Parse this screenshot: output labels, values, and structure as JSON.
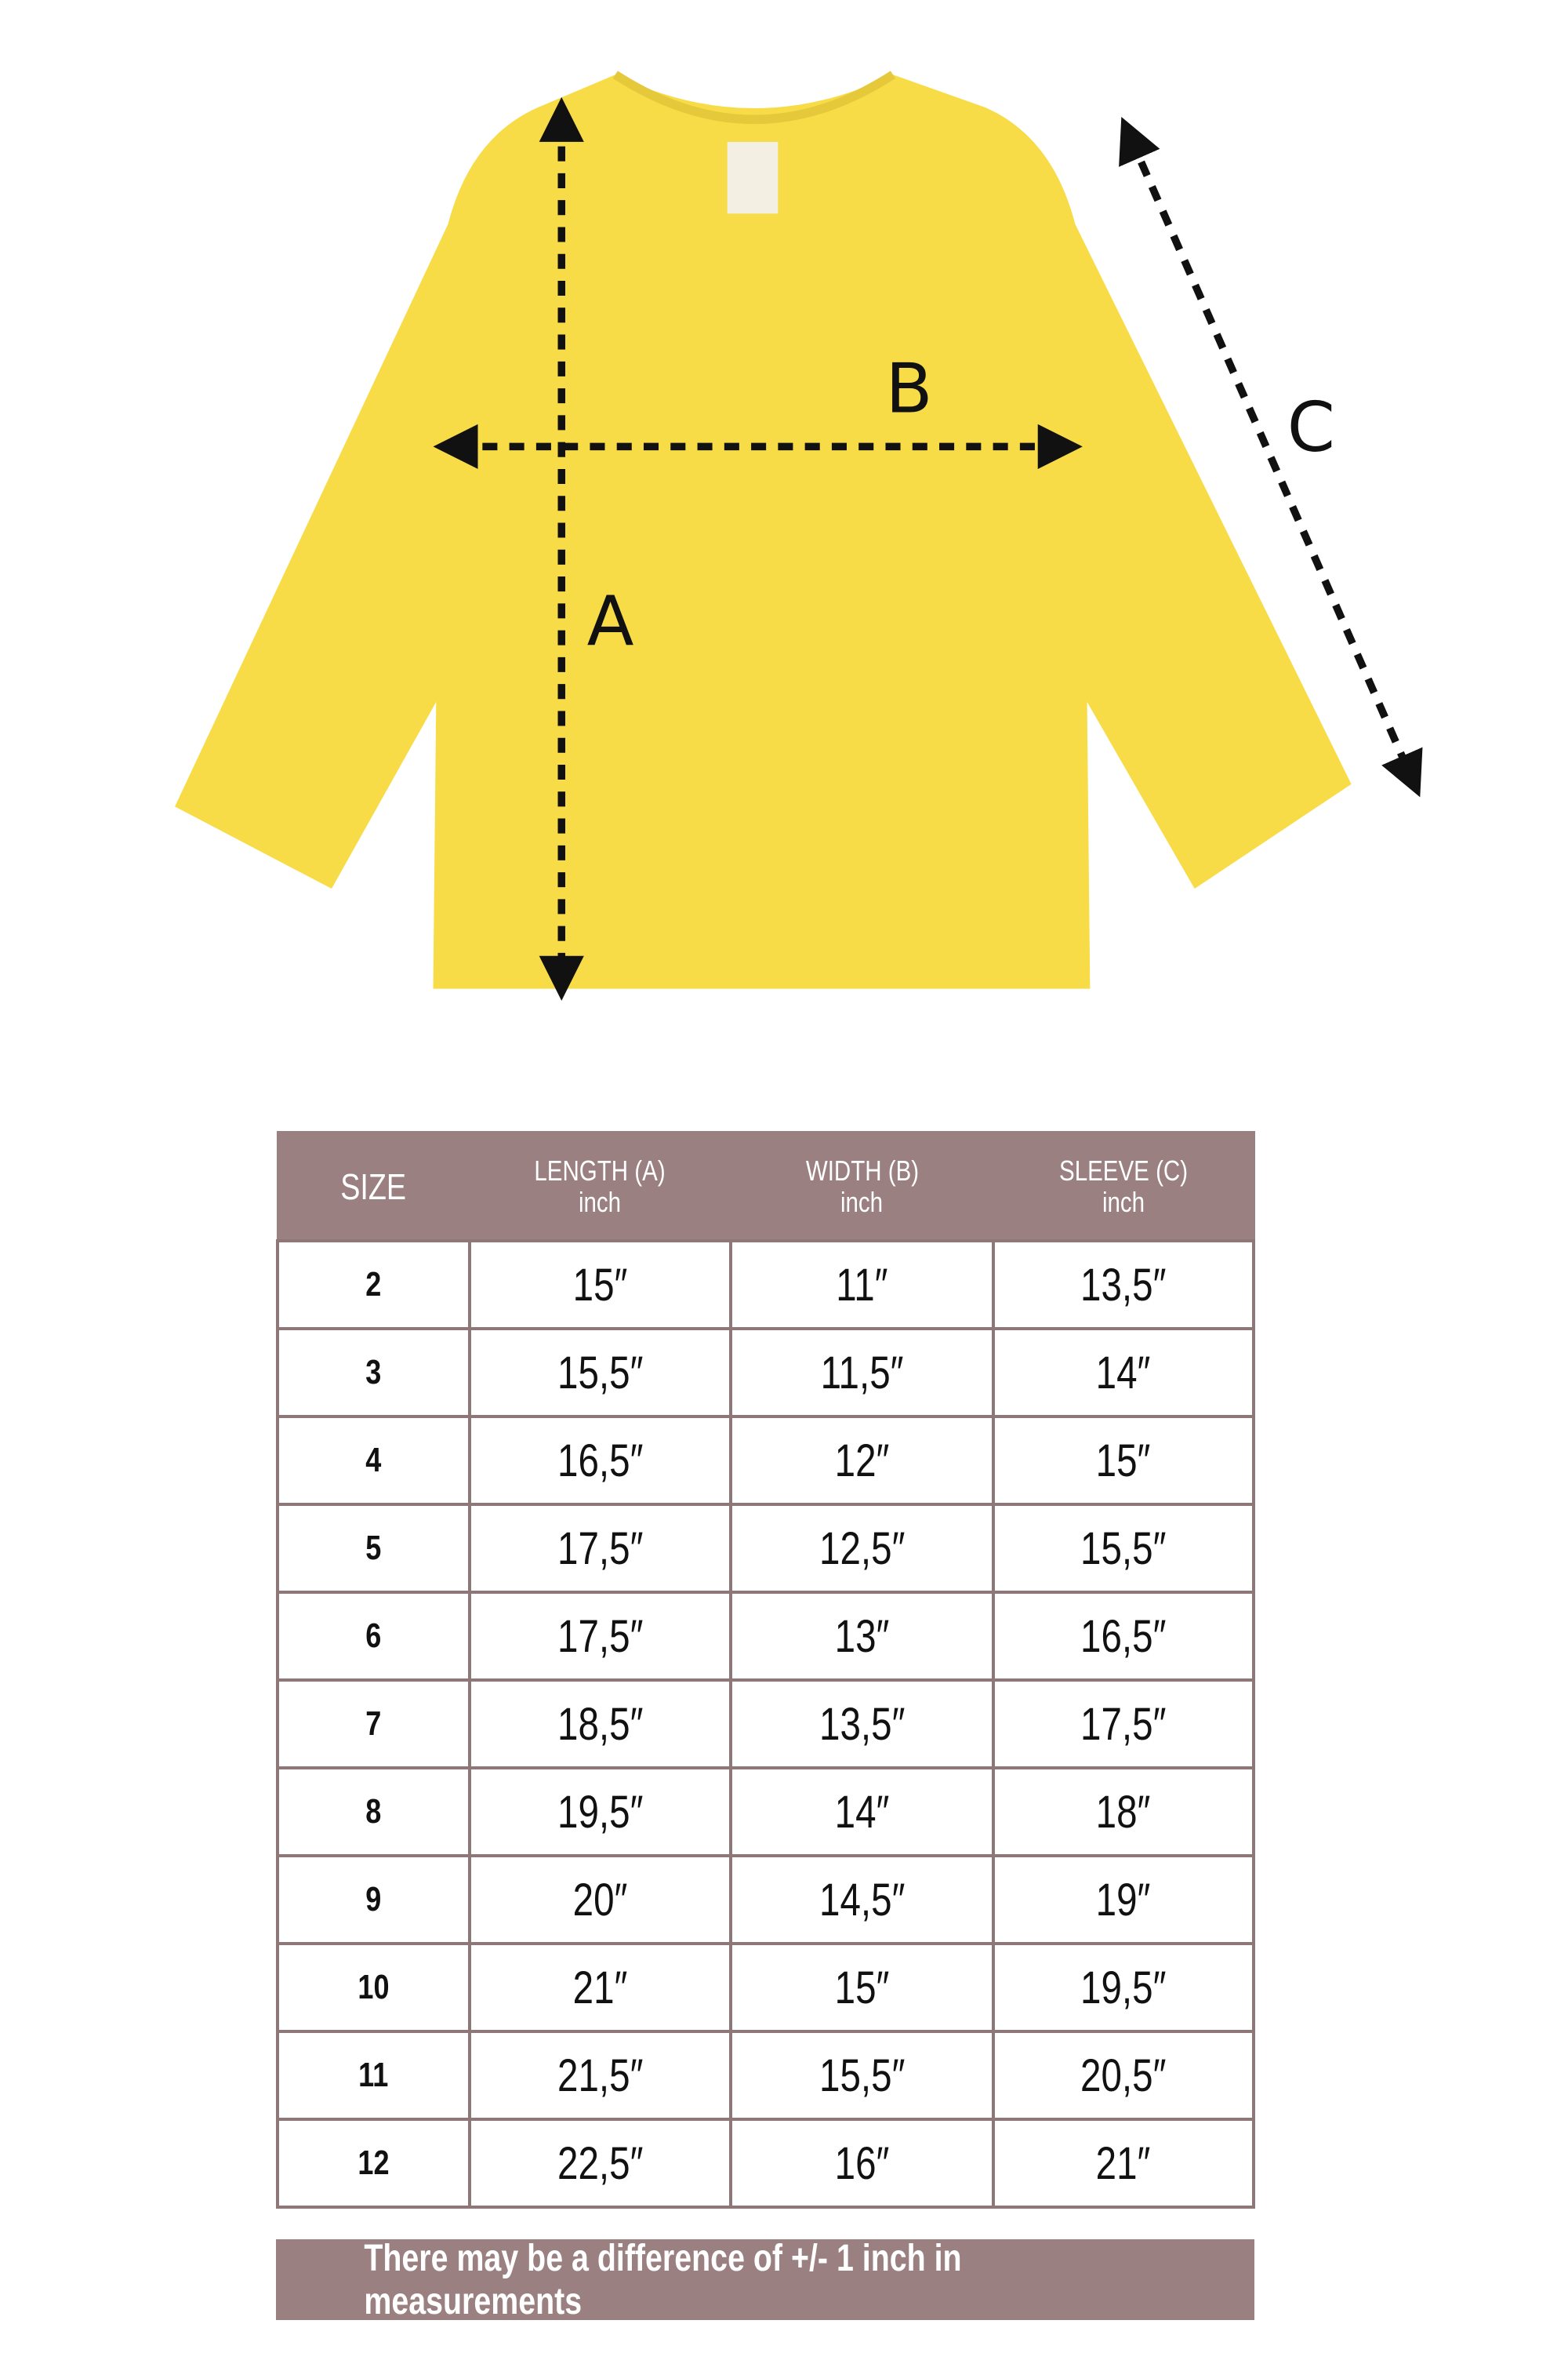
{
  "diagram": {
    "labels": {
      "a": "A",
      "b": "B",
      "c": "C"
    },
    "colors": {
      "shirt": "#f7dc48",
      "arrows": "#111111"
    }
  },
  "table": {
    "headers": [
      {
        "title": "SIZE",
        "unit": ""
      },
      {
        "title": "LENGTH (A)",
        "unit": "inch"
      },
      {
        "title": "WIDTH (B)",
        "unit": "inch"
      },
      {
        "title": "SLEEVE (C)",
        "unit": "inch"
      }
    ],
    "rows": [
      [
        "2",
        "15″",
        "11″",
        "13,5″"
      ],
      [
        "3",
        "15,5″",
        "11,5″",
        "14″"
      ],
      [
        "4",
        "16,5″",
        "12″",
        "15″"
      ],
      [
        "5",
        "17,5″",
        "12,5″",
        "15,5″"
      ],
      [
        "6",
        "17,5″",
        "13″",
        "16,5″"
      ],
      [
        "7",
        "18,5″",
        "13,5″",
        "17,5″"
      ],
      [
        "8",
        "19,5″",
        "14″",
        "18″"
      ],
      [
        "9",
        "20″",
        "14,5″",
        "19″"
      ],
      [
        "10",
        "21″",
        "15″",
        "19,5″"
      ],
      [
        "11",
        "21,5″",
        "15,5″",
        "20,5″"
      ],
      [
        "12",
        "22,5″",
        "16″",
        "21″"
      ]
    ],
    "header_color": "#9b8081"
  },
  "note": "There may be a difference of +/- 1 inch in measurements"
}
